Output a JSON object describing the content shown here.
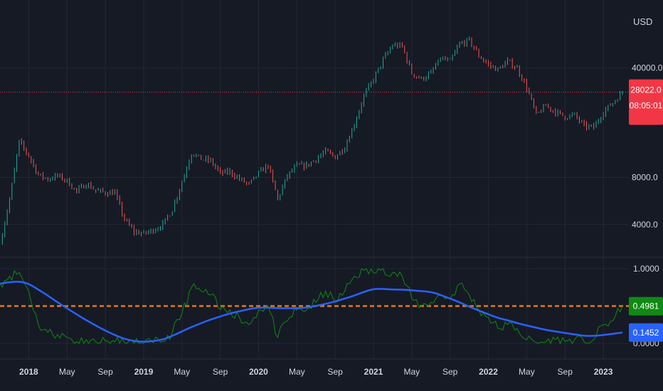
{
  "colors": {
    "background": "#161a25",
    "grid": "#232734",
    "axis_text": "#d1d4dc",
    "candle_up": "#26a69a",
    "candle_down": "#ef5350",
    "price_line": "#f23645",
    "price_badge": "#f23645",
    "oscillator": "#0f8a0f",
    "oscillator_ma": "#2962ff",
    "threshold": "#e07b16",
    "badge_green": "#108a14",
    "badge_blue": "#2962ff"
  },
  "chart_data": [
    {
      "type": "candlestick",
      "title": "",
      "currency_label": "USD",
      "scale": "log",
      "ylim": [
        2600,
        100000
      ],
      "y_ticks": [
        "40000.0",
        "8000.0",
        "4000.0"
      ],
      "y_tick_values": [
        40000,
        8000,
        4000
      ],
      "current_price": 28022.0,
      "current_price_label": "28022.0",
      "countdown_label": "08:05:01",
      "grid": true,
      "series": [
        {
          "x": [
            "2017-10",
            "2017-11",
            "2017-12",
            "2018-01",
            "2018-02",
            "2018-03",
            "2018-04",
            "2018-05",
            "2018-06",
            "2018-07",
            "2018-08",
            "2018-09",
            "2018-10",
            "2018-11",
            "2018-12",
            "2019-01",
            "2019-02",
            "2019-03",
            "2019-04",
            "2019-05",
            "2019-06",
            "2019-07",
            "2019-08",
            "2019-09",
            "2019-10",
            "2019-11",
            "2019-12",
            "2020-01",
            "2020-02",
            "2020-03",
            "2020-04",
            "2020-05",
            "2020-06",
            "2020-07",
            "2020-08",
            "2020-09",
            "2020-10",
            "2020-11",
            "2020-12",
            "2021-01",
            "2021-02",
            "2021-03",
            "2021-04",
            "2021-05",
            "2021-06",
            "2021-07",
            "2021-08",
            "2021-09",
            "2021-10",
            "2021-11",
            "2021-12",
            "2022-01",
            "2022-02",
            "2022-03",
            "2022-04",
            "2022-05",
            "2022-06",
            "2022-07",
            "2022-08",
            "2022-09",
            "2022-10",
            "2022-11",
            "2022-12",
            "2023-01",
            "2023-02",
            "2023-03"
          ],
          "y": [
            3000,
            5800,
            13500,
            11000,
            8300,
            7800,
            8200,
            7600,
            6500,
            7300,
            6600,
            6400,
            6400,
            4300,
            3600,
            3500,
            3700,
            4000,
            5000,
            7500,
            11500,
            10500,
            10200,
            8500,
            8700,
            7800,
            7200,
            8500,
            9600,
            5800,
            8200,
            9500,
            9500,
            10500,
            11700,
            10800,
            12500,
            17500,
            26500,
            34000,
            45000,
            56000,
            55000,
            37000,
            34000,
            37000,
            46000,
            44000,
            57000,
            60000,
            48000,
            42000,
            39000,
            44000,
            40000,
            30000,
            20000,
            23000,
            21000,
            19500,
            20000,
            17000,
            16700,
            21000,
            24000,
            28022
          ]
        }
      ]
    },
    {
      "type": "line",
      "title": "",
      "ylim": [
        0,
        1
      ],
      "y_ticks": [
        "1.0000",
        "0.0000"
      ],
      "y_tick_values": [
        1,
        0
      ],
      "threshold": 0.5,
      "grid": true,
      "series": [
        {
          "name": "",
          "x": [
            "2017-10",
            "2017-11",
            "2017-12",
            "2018-01",
            "2018-02",
            "2018-03",
            "2018-04",
            "2018-05",
            "2018-06",
            "2018-07",
            "2018-08",
            "2018-09",
            "2018-10",
            "2018-11",
            "2018-12",
            "2019-01",
            "2019-02",
            "2019-03",
            "2019-04",
            "2019-05",
            "2019-06",
            "2019-07",
            "2019-08",
            "2019-09",
            "2019-10",
            "2019-11",
            "2019-12",
            "2020-01",
            "2020-02",
            "2020-03",
            "2020-04",
            "2020-05",
            "2020-06",
            "2020-07",
            "2020-08",
            "2020-09",
            "2020-10",
            "2020-11",
            "2020-12",
            "2021-01",
            "2021-02",
            "2021-03",
            "2021-04",
            "2021-05",
            "2021-06",
            "2021-07",
            "2021-08",
            "2021-09",
            "2021-10",
            "2021-11",
            "2021-12",
            "2022-01",
            "2022-02",
            "2022-03",
            "2022-04",
            "2022-05",
            "2022-06",
            "2022-07",
            "2022-08",
            "2022-09",
            "2022-10",
            "2022-11",
            "2022-12",
            "2023-01",
            "2023-02",
            "2023-03"
          ],
          "y": [
            0.8,
            0.9,
            0.95,
            0.7,
            0.25,
            0.15,
            0.12,
            0.08,
            0.02,
            0.05,
            0.02,
            0.03,
            0.02,
            0.01,
            0.0,
            0.0,
            0.01,
            0.03,
            0.15,
            0.4,
            0.75,
            0.7,
            0.65,
            0.45,
            0.45,
            0.35,
            0.25,
            0.45,
            0.5,
            0.08,
            0.3,
            0.45,
            0.45,
            0.55,
            0.7,
            0.55,
            0.7,
            0.9,
            0.98,
            0.95,
            1.0,
            0.95,
            0.9,
            0.6,
            0.5,
            0.55,
            0.65,
            0.6,
            0.8,
            0.65,
            0.45,
            0.35,
            0.2,
            0.25,
            0.2,
            0.05,
            0.01,
            0.02,
            0.05,
            0.03,
            0.05,
            0.02,
            0.05,
            0.25,
            0.3,
            0.4981
          ],
          "last_label": "0.4981"
        },
        {
          "name": "",
          "x": [
            "2017-10",
            "2017-11",
            "2017-12",
            "2018-01",
            "2018-02",
            "2018-03",
            "2018-04",
            "2018-05",
            "2018-06",
            "2018-07",
            "2018-08",
            "2018-09",
            "2018-10",
            "2018-11",
            "2018-12",
            "2019-01",
            "2019-02",
            "2019-03",
            "2019-04",
            "2019-05",
            "2019-06",
            "2019-07",
            "2019-08",
            "2019-09",
            "2019-10",
            "2019-11",
            "2019-12",
            "2020-01",
            "2020-02",
            "2020-03",
            "2020-04",
            "2020-05",
            "2020-06",
            "2020-07",
            "2020-08",
            "2020-09",
            "2020-10",
            "2020-11",
            "2020-12",
            "2021-01",
            "2021-02",
            "2021-03",
            "2021-04",
            "2021-05",
            "2021-06",
            "2021-07",
            "2021-08",
            "2021-09",
            "2021-10",
            "2021-11",
            "2021-12",
            "2022-01",
            "2022-02",
            "2022-03",
            "2022-04",
            "2022-05",
            "2022-06",
            "2022-07",
            "2022-08",
            "2022-09",
            "2022-10",
            "2022-11",
            "2022-12",
            "2023-01",
            "2023-02",
            "2023-03"
          ],
          "y": [
            0.8,
            0.82,
            0.83,
            0.8,
            0.72,
            0.64,
            0.55,
            0.47,
            0.39,
            0.31,
            0.24,
            0.17,
            0.11,
            0.06,
            0.03,
            0.02,
            0.03,
            0.05,
            0.1,
            0.16,
            0.22,
            0.27,
            0.32,
            0.36,
            0.4,
            0.43,
            0.46,
            0.48,
            0.48,
            0.47,
            0.47,
            0.47,
            0.48,
            0.5,
            0.53,
            0.56,
            0.6,
            0.64,
            0.69,
            0.73,
            0.73,
            0.72,
            0.72,
            0.71,
            0.7,
            0.69,
            0.65,
            0.6,
            0.55,
            0.49,
            0.44,
            0.39,
            0.34,
            0.31,
            0.27,
            0.24,
            0.21,
            0.18,
            0.16,
            0.14,
            0.12,
            0.1,
            0.1,
            0.11,
            0.13,
            0.1452
          ],
          "last_label": "0.1452"
        }
      ]
    }
  ],
  "x_axis": {
    "tick_labels": [
      "2018",
      "May",
      "Sep",
      "2019",
      "May",
      "Sep",
      "2020",
      "May",
      "Sep",
      "2021",
      "May",
      "Sep",
      "2022",
      "May",
      "Sep",
      "2023"
    ],
    "tick_dates": [
      "2018-01",
      "2018-05",
      "2018-09",
      "2019-01",
      "2019-05",
      "2019-09",
      "2020-01",
      "2020-05",
      "2020-09",
      "2021-01",
      "2021-05",
      "2021-09",
      "2022-01",
      "2022-05",
      "2022-09",
      "2023-01"
    ],
    "bold": [
      true,
      false,
      false,
      true,
      false,
      false,
      true,
      false,
      false,
      true,
      false,
      false,
      true,
      false,
      false,
      true
    ]
  }
}
